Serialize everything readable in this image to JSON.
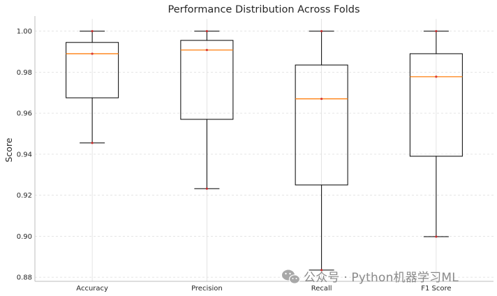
{
  "chart_data": {
    "type": "box",
    "title": "Performance Distribution Across Folds",
    "xlabel": "",
    "ylabel": "Score",
    "ylim": [
      0.878,
      1.006
    ],
    "yticks": [
      0.88,
      0.9,
      0.92,
      0.94,
      0.96,
      0.98,
      1.0
    ],
    "ytick_labels": [
      "0.88",
      "0.90",
      "0.92",
      "0.94",
      "0.96",
      "0.98",
      "1.00"
    ],
    "grid": true,
    "categories": [
      "Accuracy",
      "Precision",
      "Recall",
      "F1 Score"
    ],
    "series": [
      {
        "name": "Accuracy",
        "min": 0.9455,
        "q1": 0.9675,
        "median": 0.989,
        "q3": 0.9945,
        "max": 1.0,
        "points": [
          1.0,
          0.989,
          0.9455
        ]
      },
      {
        "name": "Precision",
        "min": 0.9232,
        "q1": 0.957,
        "median": 0.9908,
        "q3": 0.9955,
        "max": 1.0,
        "points": [
          1.0,
          0.9908,
          0.9232
        ]
      },
      {
        "name": "Recall",
        "min": 0.8835,
        "q1": 0.925,
        "median": 0.967,
        "q3": 0.9835,
        "max": 1.0,
        "points": [
          1.0,
          0.967,
          0.8835
        ]
      },
      {
        "name": "F1 Score",
        "min": 0.8998,
        "q1": 0.939,
        "median": 0.9778,
        "q3": 0.989,
        "max": 1.0,
        "points": [
          1.0,
          0.9778,
          0.8998
        ]
      }
    ],
    "colors": {
      "box": "#000000",
      "median": "#ff7f0e",
      "points": "#d62728",
      "grid": "#dcdcdc",
      "spine": "#bdbdbd"
    }
  },
  "watermark": {
    "text": "公众号 · Python机器学习ML",
    "icon": "wechat-icon"
  }
}
